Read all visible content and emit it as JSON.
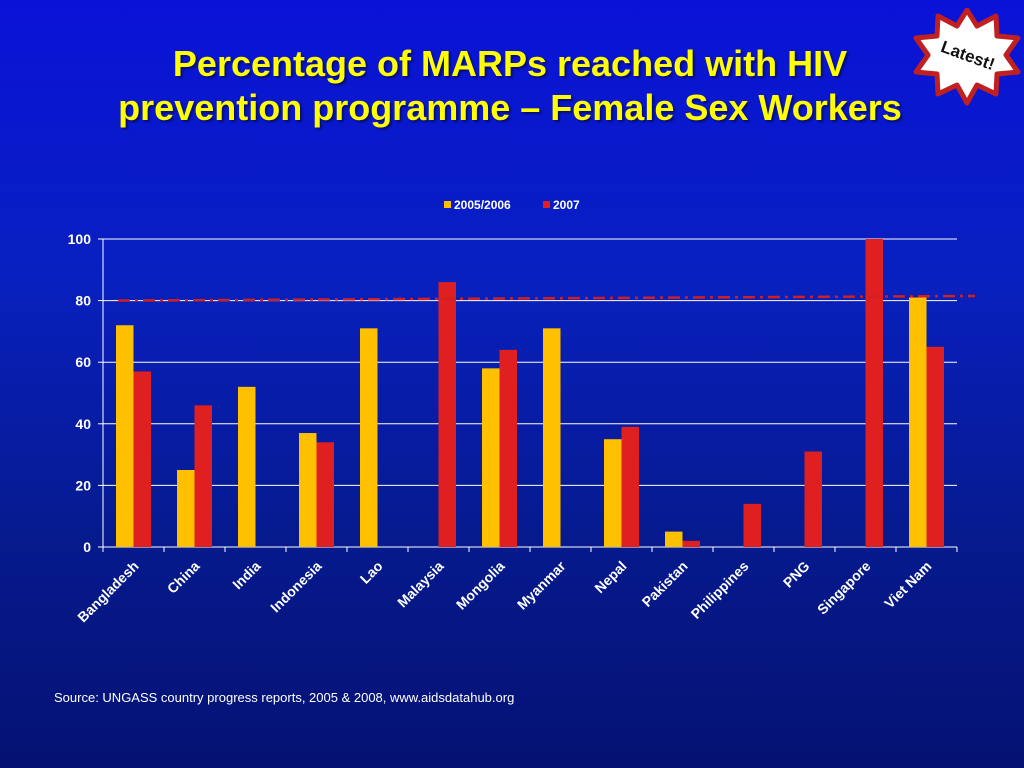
{
  "slide": {
    "title_line1": "Percentage of MARPs reached with HIV",
    "title_line2": "prevention programme – Female Sex Workers",
    "badge_label": "Latest!",
    "source": "Source: UNGASS country progress reports, 2005 & 2008, www.aidsdatahub.org",
    "colors": {
      "background": "#0a14c8",
      "title": "#ffff00",
      "series_2005": "#ffc000",
      "series_2007": "#e02020",
      "target_line": "#d02020"
    }
  },
  "chart_data": {
    "type": "bar",
    "title": "",
    "xlabel": "",
    "ylabel": "",
    "ylim": [
      0,
      100
    ],
    "yticks": [
      0,
      20,
      40,
      60,
      80,
      100
    ],
    "grid": true,
    "legend_position": "top-center",
    "categories": [
      "Bangladesh",
      "China",
      "India",
      "Indonesia",
      "Lao",
      "Malaysia",
      "Mongolia",
      "Myanmar",
      "Nepal",
      "Pakistan",
      "Philippines",
      "PNG",
      "Singapore",
      "Viet Nam"
    ],
    "series": [
      {
        "name": "2005/2006",
        "color": "#ffc000",
        "values": [
          72,
          25,
          52,
          37,
          71,
          null,
          58,
          71,
          35,
          5,
          null,
          null,
          null,
          81
        ]
      },
      {
        "name": "2007",
        "color": "#e02020",
        "values": [
          57,
          46,
          null,
          34,
          null,
          86,
          64,
          null,
          39,
          2,
          14,
          31,
          100,
          65
        ]
      }
    ],
    "reference_line": {
      "style": "dash-dot",
      "y_start": 80,
      "y_end": 81.5
    }
  }
}
